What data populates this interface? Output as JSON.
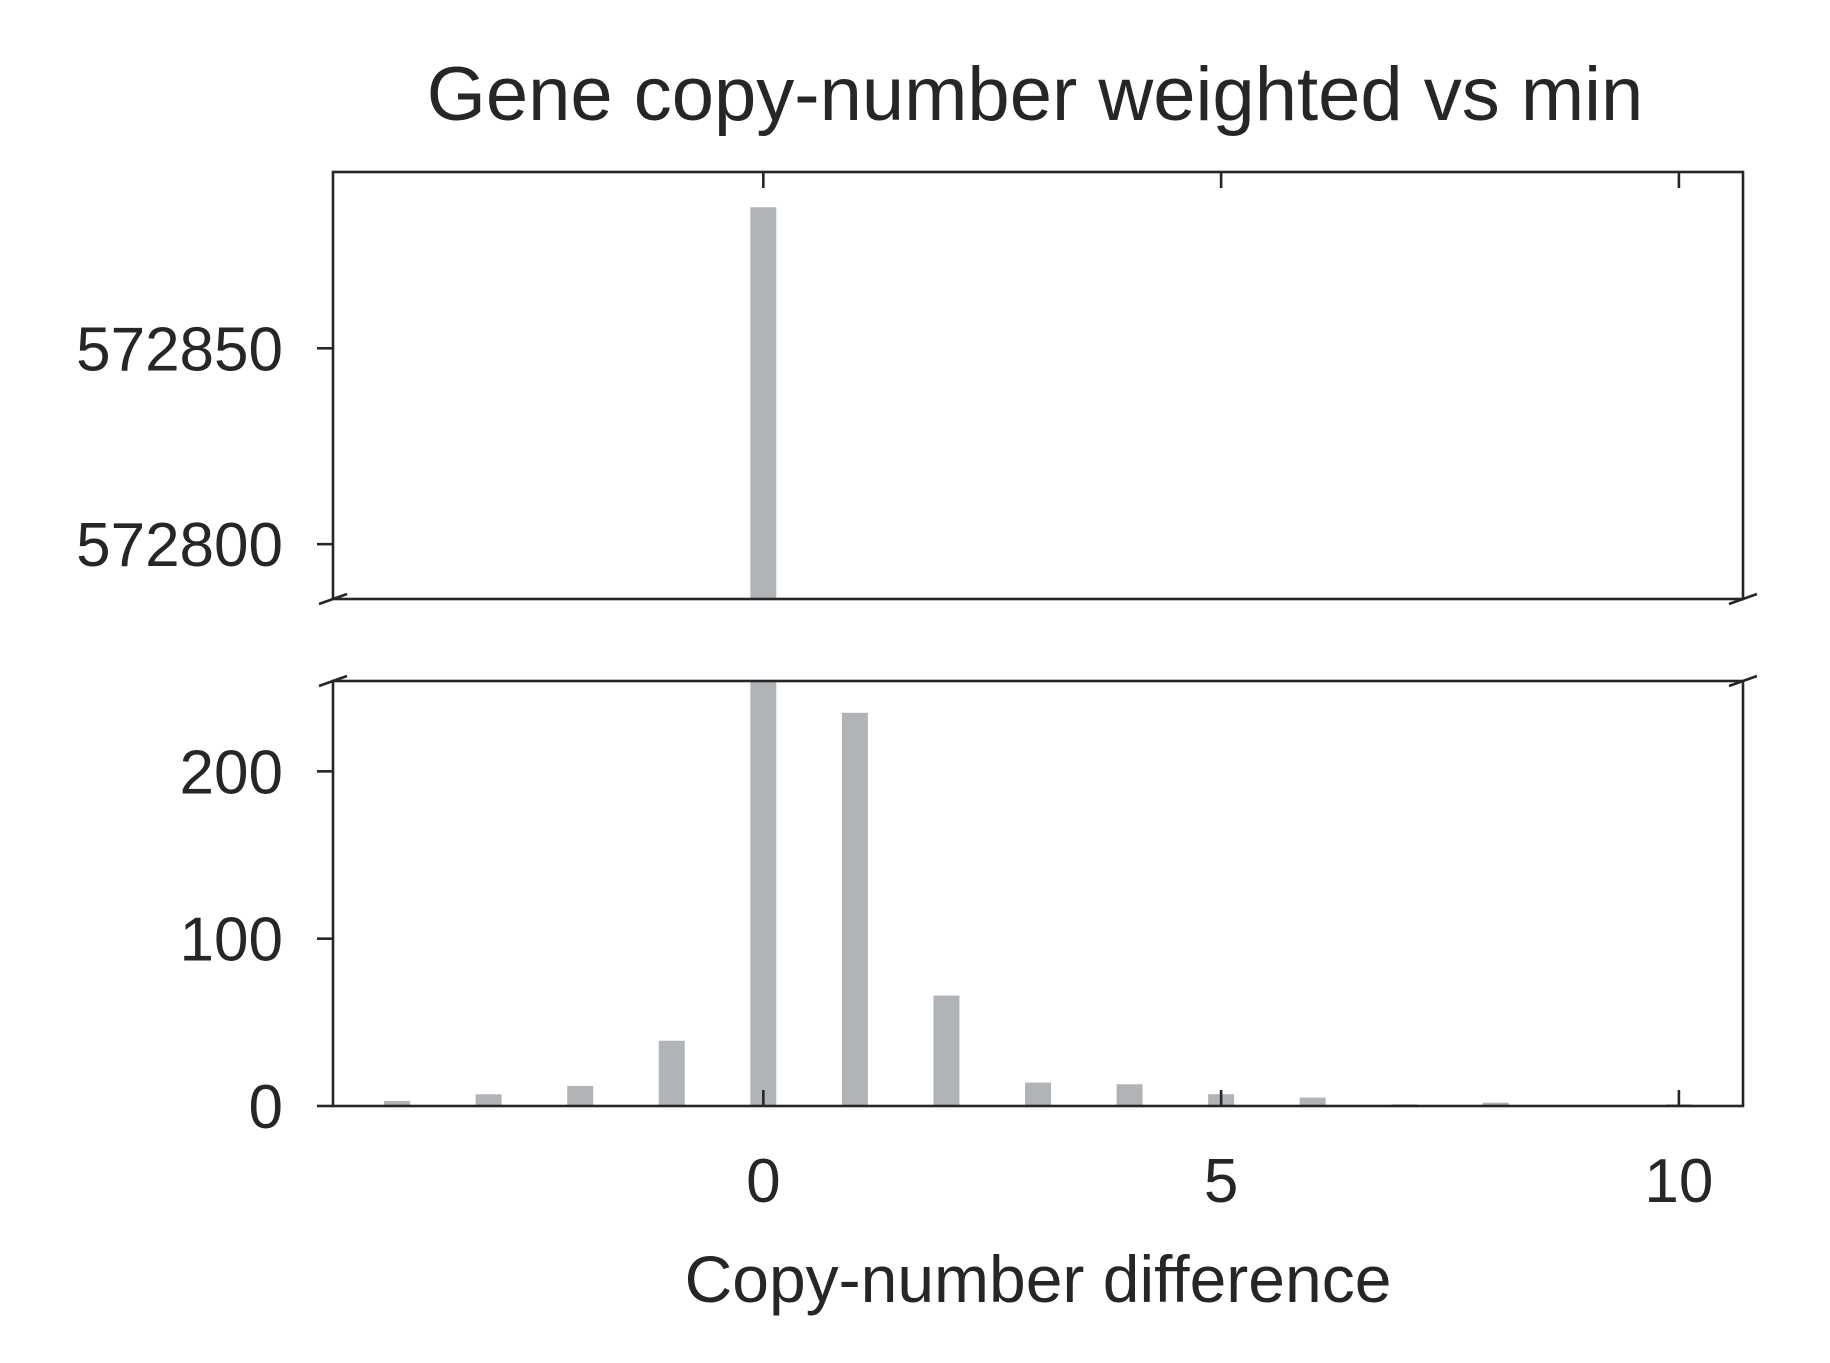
{
  "chart_data": {
    "type": "bar",
    "title": "Gene copy-number weighted vs min",
    "xlabel": "Copy-number difference",
    "ylabel": "",
    "y_axis": "broken",
    "x": [
      -4,
      -3,
      -2,
      -1,
      0,
      1,
      2,
      3,
      4,
      5,
      6,
      7,
      8,
      10
    ],
    "values": [
      3,
      7,
      12,
      39,
      572886,
      235,
      66,
      14,
      13,
      7,
      5,
      1,
      2,
      1
    ],
    "xlim": [
      -4.7,
      10.7
    ],
    "x_ticks": [
      0,
      5,
      10
    ],
    "x_tick_labels": [
      "0",
      "5",
      "10"
    ],
    "upper_ylim": [
      572786,
      572895
    ],
    "lower_ylim": [
      0,
      254
    ],
    "upper_y_ticks": [
      572800,
      572850
    ],
    "upper_y_tick_labels": [
      "572800",
      "572850"
    ],
    "lower_y_ticks": [
      0,
      100,
      200
    ],
    "lower_y_tick_labels": [
      "0",
      "100",
      "200"
    ],
    "bar_color": "#b0b4b7",
    "grid": false,
    "legend": "none"
  }
}
